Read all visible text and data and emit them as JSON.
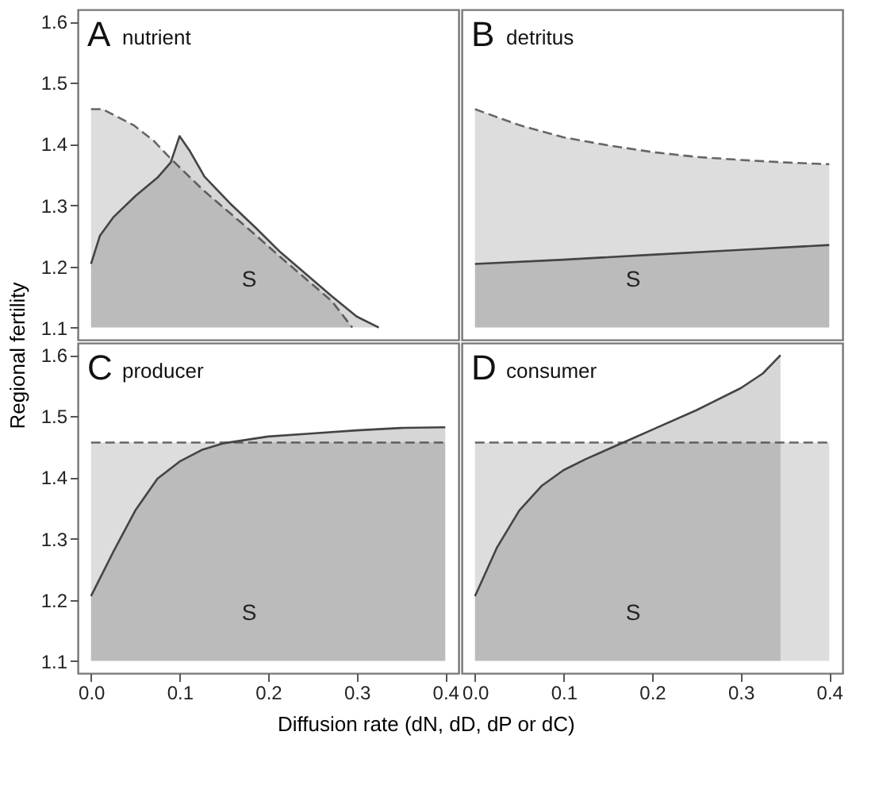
{
  "chart_data": [
    {
      "type": "area",
      "title": "A",
      "subtitle": "nutrient",
      "xlim": [
        -0.015,
        0.415
      ],
      "ylim": [
        1.08,
        1.62
      ],
      "yticks": [
        1.1,
        1.2,
        1.3,
        1.4,
        1.5,
        1.6
      ],
      "tick_labels": "y",
      "grid": false,
      "annotations": [
        "S"
      ],
      "series": [
        {
          "color": "#666666",
          "line_style": "dashed",
          "x": [
            0,
            0.013,
            0.048,
            0.071,
            0.088,
            0.105,
            0.128,
            0.157,
            0.186,
            0.214,
            0.243,
            0.272,
            0.295
          ],
          "values": [
            1.457,
            1.457,
            1.431,
            1.405,
            1.379,
            1.355,
            1.323,
            1.287,
            1.251,
            1.215,
            1.179,
            1.143,
            1.1
          ]
        },
        {
          "color": "#444444",
          "line_style": "solid",
          "x": [
            0,
            0.01,
            0.025,
            0.05,
            0.075,
            0.09,
            0.1,
            0.111,
            0.128,
            0.157,
            0.186,
            0.214,
            0.243,
            0.272,
            0.3,
            0.325
          ],
          "values": [
            1.204,
            1.25,
            1.28,
            1.315,
            1.345,
            1.37,
            1.413,
            1.39,
            1.347,
            1.303,
            1.263,
            1.223,
            1.187,
            1.151,
            1.118,
            1.1
          ]
        }
      ]
    },
    {
      "type": "area",
      "title": "B",
      "subtitle": "detritus",
      "xlim": [
        -0.015,
        0.415
      ],
      "ylim": [
        1.08,
        1.62
      ],
      "yticks": [
        1.1,
        1.2,
        1.3,
        1.4,
        1.5,
        1.6
      ],
      "tick_labels": false,
      "grid": false,
      "annotations": [
        "S"
      ],
      "series": [
        {
          "color": "#666666",
          "line_style": "dashed",
          "x": [
            0,
            0.05,
            0.1,
            0.15,
            0.2,
            0.25,
            0.3,
            0.35,
            0.4
          ],
          "values": [
            1.457,
            1.431,
            1.411,
            1.398,
            1.387,
            1.379,
            1.374,
            1.37,
            1.367
          ]
        },
        {
          "color": "#444444",
          "line_style": "solid",
          "x": [
            0,
            0.1,
            0.2,
            0.3,
            0.4
          ],
          "values": [
            1.204,
            1.211,
            1.219,
            1.227,
            1.235
          ]
        }
      ]
    },
    {
      "type": "area",
      "title": "C",
      "subtitle": "producer",
      "xlabel": "Diffusion rate (dN, dD, dP or dC)",
      "ylabel": "Regional fertility",
      "xlim": [
        -0.015,
        0.415
      ],
      "ylim": [
        1.08,
        1.62
      ],
      "xticks": [
        {
          "value": 0,
          "label": "0.0"
        },
        0.1,
        0.2,
        0.3,
        0.4
      ],
      "yticks": [
        1.1,
        1.2,
        1.3,
        1.4,
        1.5,
        1.6
      ],
      "grid": false,
      "annotations": [
        "S"
      ],
      "series": [
        {
          "color": "#666666",
          "line_style": "dashed",
          "x": [
            0,
            0.4
          ],
          "values": [
            1.457,
            1.457
          ]
        },
        {
          "color": "#444444",
          "line_style": "solid",
          "x": [
            0,
            0.025,
            0.05,
            0.075,
            0.1,
            0.125,
            0.15,
            0.2,
            0.25,
            0.3,
            0.35,
            0.4
          ],
          "values": [
            1.206,
            1.278,
            1.346,
            1.398,
            1.426,
            1.445,
            1.456,
            1.467,
            1.472,
            1.477,
            1.481,
            1.482
          ]
        }
      ]
    },
    {
      "type": "area",
      "title": "D",
      "subtitle": "consumer",
      "xlim": [
        -0.015,
        0.415
      ],
      "ylim": [
        1.08,
        1.62
      ],
      "xticks": [
        {
          "value": 0,
          "label": "0.0"
        },
        0.1,
        0.2,
        0.3,
        0.4
      ],
      "yticks": [
        1.1,
        1.2,
        1.3,
        1.4,
        1.5,
        1.6
      ],
      "tick_labels": "x",
      "grid": false,
      "annotations": [
        "S"
      ],
      "series": [
        {
          "color": "#666666",
          "line_style": "dashed",
          "x": [
            0,
            0.4
          ],
          "values": [
            1.457,
            1.457
          ]
        },
        {
          "color": "#444444",
          "line_style": "solid",
          "x": [
            0,
            0.025,
            0.05,
            0.075,
            0.1,
            0.125,
            0.15,
            0.175,
            0.2,
            0.25,
            0.3,
            0.325,
            0.345
          ],
          "values": [
            1.206,
            1.286,
            1.346,
            1.386,
            1.412,
            1.43,
            1.446,
            1.462,
            1.478,
            1.51,
            1.546,
            1.57,
            1.6
          ]
        }
      ]
    }
  ]
}
